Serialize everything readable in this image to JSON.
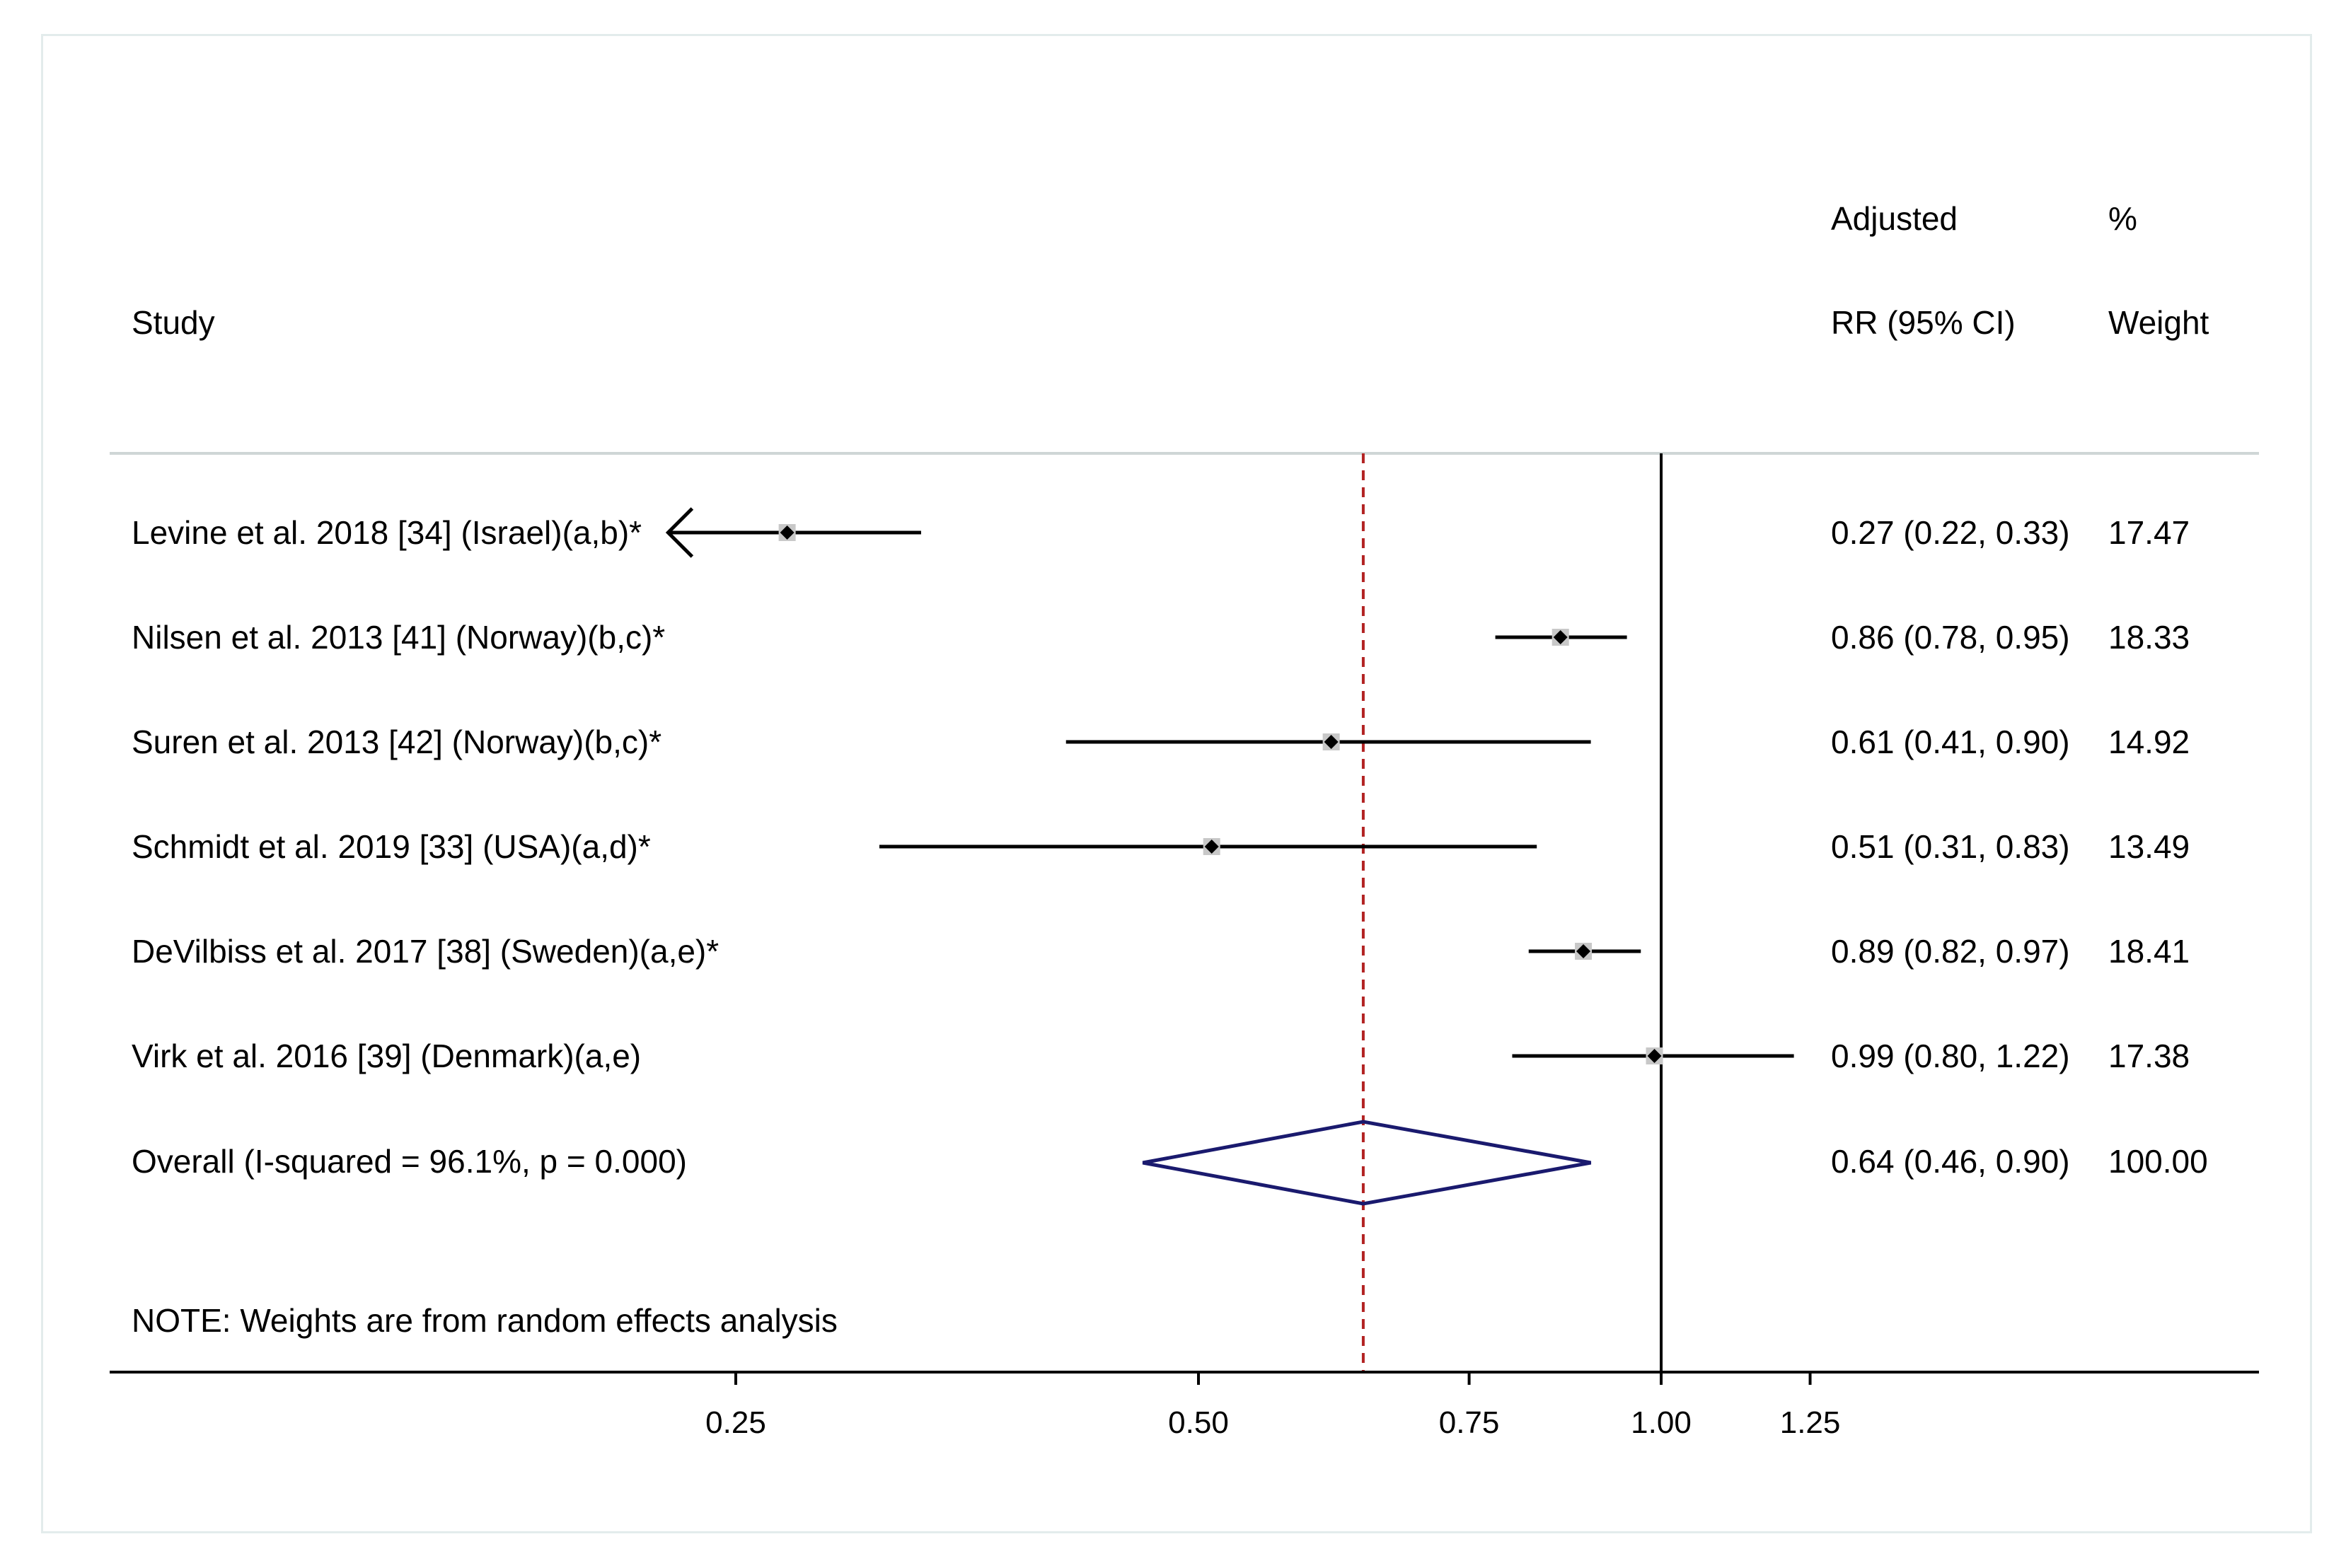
{
  "chart_data": {
    "type": "forest",
    "header": {
      "study_label": "Study",
      "estimate_label_line1": "Adjusted",
      "estimate_label_line2": "RR (95% CI)",
      "weight_label_line1": "%",
      "weight_label_line2": "Weight"
    },
    "studies": [
      {
        "label": "Levine et al. 2018 [34] (Israel)(a,b)*",
        "rr": 0.27,
        "lower": 0.22,
        "upper": 0.33,
        "ci_text": "0.27 (0.22, 0.33)",
        "weight": "17.47"
      },
      {
        "label": "Nilsen et al. 2013 [41] (Norway)(b,c)*",
        "rr": 0.86,
        "lower": 0.78,
        "upper": 0.95,
        "ci_text": "0.86 (0.78, 0.95)",
        "weight": "18.33"
      },
      {
        "label": "Suren et al. 2013 [42] (Norway)(b,c)*",
        "rr": 0.61,
        "lower": 0.41,
        "upper": 0.9,
        "ci_text": "0.61 (0.41, 0.90)",
        "weight": "14.92"
      },
      {
        "label": "Schmidt et al. 2019 [33] (USA)(a,d)*",
        "rr": 0.51,
        "lower": 0.31,
        "upper": 0.83,
        "ci_text": "0.51 (0.31, 0.83)",
        "weight": "13.49"
      },
      {
        "label": "DeVilbiss et al. 2017 [38] (Sweden)(a,e)*",
        "rr": 0.89,
        "lower": 0.82,
        "upper": 0.97,
        "ci_text": "0.89 (0.82, 0.97)",
        "weight": "18.41"
      },
      {
        "label": "Virk et al. 2016 [39] (Denmark)(a,e)",
        "rr": 0.99,
        "lower": 0.8,
        "upper": 1.22,
        "ci_text": "0.99 (0.80, 1.22)",
        "weight": "17.38"
      }
    ],
    "overall": {
      "label": "Overall  (I-squared = 96.1%, p = 0.000)",
      "rr": 0.64,
      "lower": 0.46,
      "upper": 0.9,
      "ci_text": "0.64 (0.46, 0.90)",
      "weight": "100.00"
    },
    "note": "NOTE: Weights are from random effects analysis",
    "x_axis": {
      "scale": "log",
      "range": [
        0.22,
        1.5
      ],
      "ticks": [
        0.25,
        0.5,
        0.75,
        1.0,
        1.25
      ],
      "tick_labels": [
        "0.25",
        "0.50",
        "0.75",
        "1.00",
        "1.25"
      ],
      "null_line": 1.0
    },
    "colors": {
      "diamond": "#1a1a6e",
      "overall_line": "#b22222",
      "box": "#c8c8c8",
      "text": "#000000"
    }
  }
}
